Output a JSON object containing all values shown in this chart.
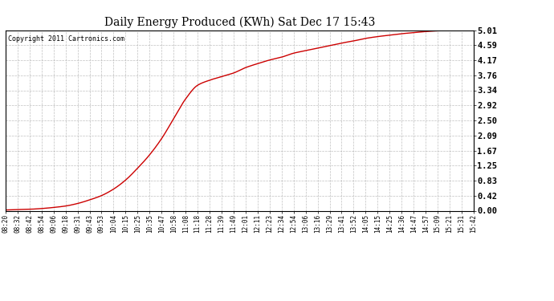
{
  "title": "Daily Energy Produced (KWh) Sat Dec 17 15:43",
  "copyright_text": "Copyright 2011 Cartronics.com",
  "line_color": "#cc0000",
  "background_color": "#ffffff",
  "plot_bg_color": "#ffffff",
  "grid_color": "#b0b0b0",
  "yticks": [
    0.0,
    0.42,
    0.83,
    1.25,
    1.67,
    2.09,
    2.5,
    2.92,
    3.34,
    3.76,
    4.17,
    4.59,
    5.01
  ],
  "xtick_labels": [
    "08:20",
    "08:32",
    "08:42",
    "08:54",
    "09:06",
    "09:18",
    "09:31",
    "09:43",
    "09:53",
    "10:04",
    "10:15",
    "10:25",
    "10:35",
    "10:47",
    "10:58",
    "11:08",
    "11:18",
    "11:28",
    "11:39",
    "11:49",
    "12:01",
    "12:11",
    "12:23",
    "12:34",
    "12:54",
    "13:06",
    "13:16",
    "13:29",
    "13:41",
    "13:52",
    "14:05",
    "14:15",
    "14:25",
    "14:36",
    "14:47",
    "14:57",
    "15:09",
    "15:21",
    "15:31",
    "15:42"
  ],
  "ymin": 0.0,
  "ymax": 5.01,
  "curve_x": [
    0,
    1,
    2,
    3,
    4,
    5,
    6,
    7,
    8,
    9,
    10,
    11,
    12,
    13,
    14,
    15,
    16,
    17,
    18,
    19,
    20,
    21,
    22,
    23,
    24,
    25,
    26,
    27,
    28,
    29,
    30,
    31,
    32,
    33,
    34,
    35,
    36,
    37,
    38,
    39
  ],
  "curve_y": [
    0.02,
    0.03,
    0.04,
    0.06,
    0.09,
    0.13,
    0.2,
    0.3,
    0.42,
    0.6,
    0.85,
    1.18,
    1.55,
    2.0,
    2.55,
    3.1,
    3.48,
    3.62,
    3.72,
    3.82,
    3.97,
    4.08,
    4.18,
    4.26,
    4.37,
    4.44,
    4.51,
    4.58,
    4.65,
    4.71,
    4.78,
    4.83,
    4.87,
    4.91,
    4.94,
    4.97,
    4.99,
    5.0,
    5.01,
    5.01
  ]
}
